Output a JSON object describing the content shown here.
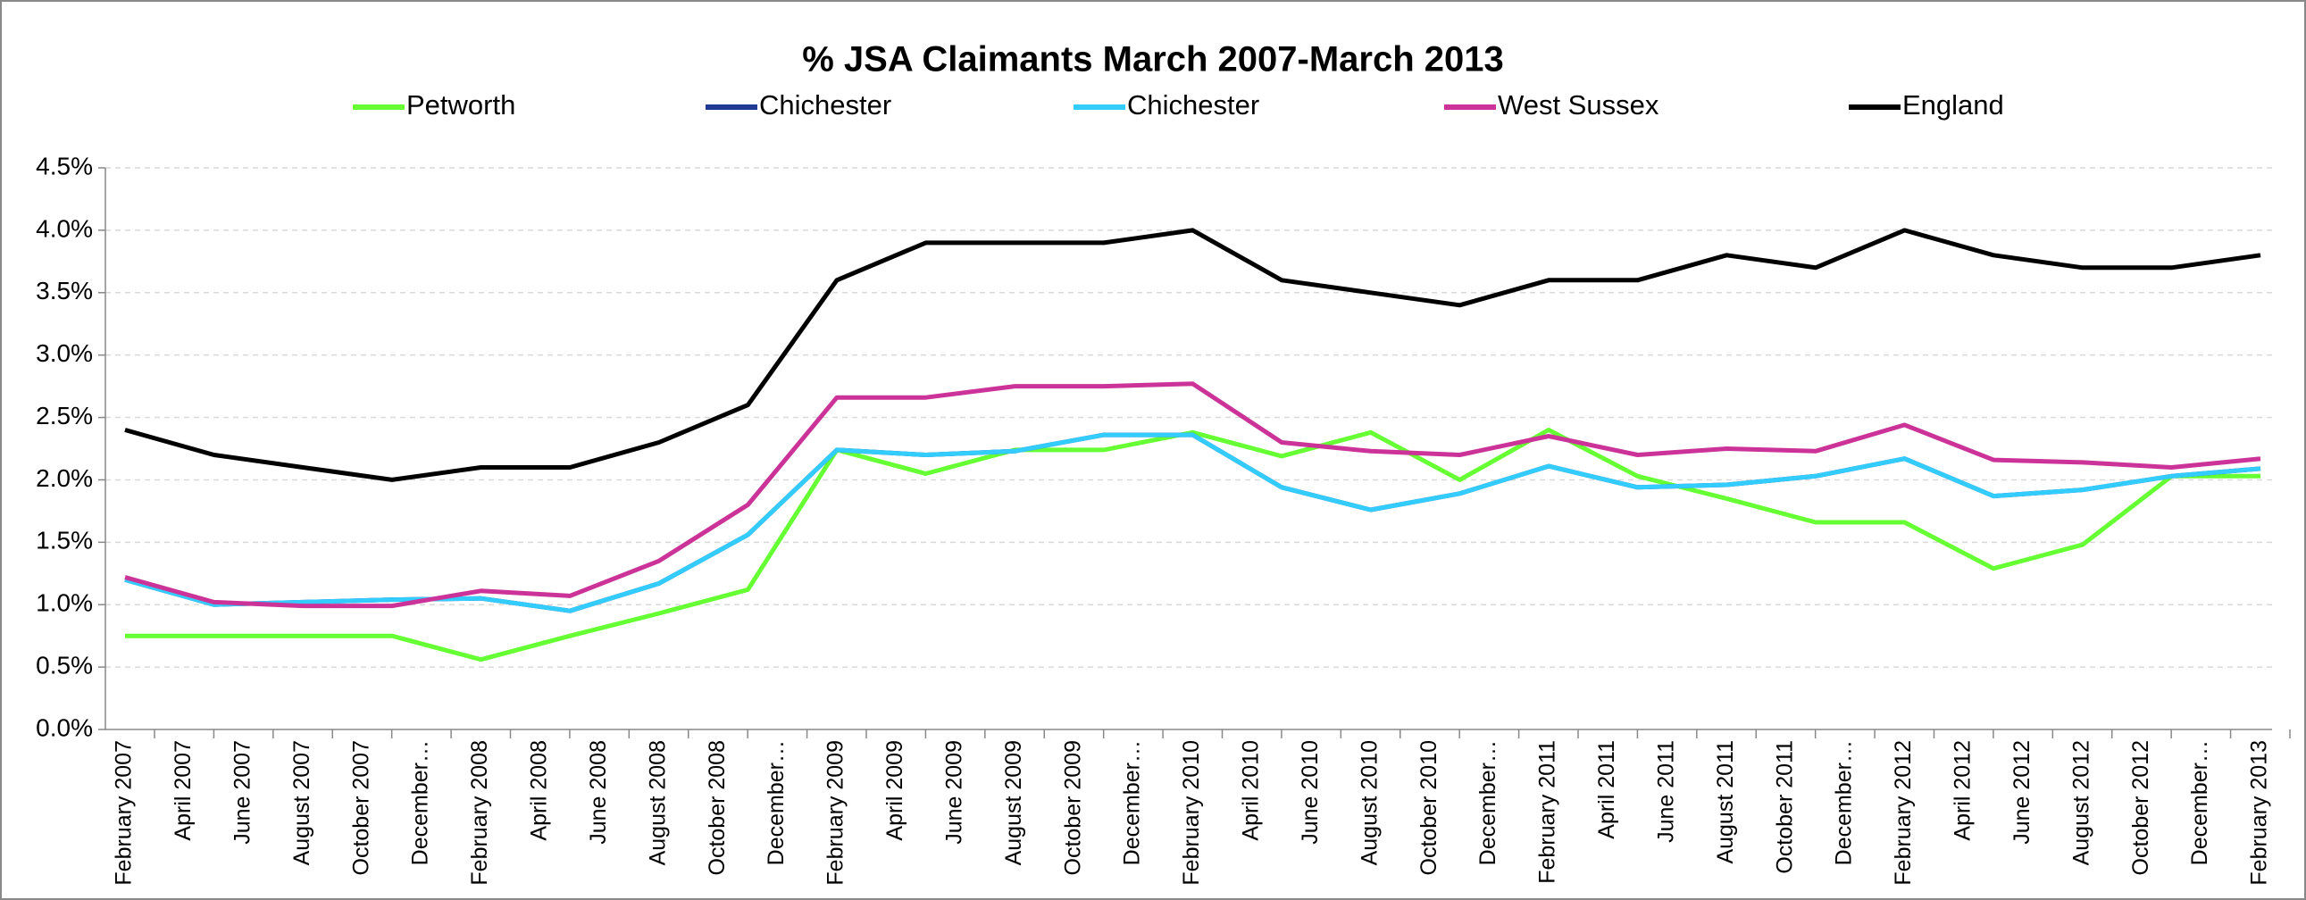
{
  "chart_data": {
    "type": "line",
    "title": "% JSA Claimants March 2007-March 2013",
    "x": [
      "2007-02",
      "2007-05",
      "2007-08",
      "2007-11",
      "2008-02",
      "2008-05",
      "2008-08",
      "2008-11",
      "2009-02",
      "2009-05",
      "2009-08",
      "2009-11",
      "2010-02",
      "2010-05",
      "2010-08",
      "2010-11",
      "2011-02",
      "2011-05",
      "2011-08",
      "2011-11",
      "2012-02",
      "2012-05",
      "2012-08",
      "2012-11",
      "2013-02"
    ],
    "series": [
      {
        "name": "Petworth",
        "color": "#66ff33",
        "values": [
          0.75,
          0.75,
          0.75,
          0.75,
          0.56,
          0.75,
          0.93,
          1.12,
          2.24,
          2.05,
          2.24,
          2.24,
          2.38,
          2.19,
          2.38,
          2.0,
          2.4,
          2.03,
          1.85,
          1.66,
          1.66,
          1.29,
          1.48,
          2.03,
          2.03
        ]
      },
      {
        "name": "Chichester",
        "color": "#1f3a93",
        "values": [
          1.2,
          1.0,
          1.02,
          1.04,
          1.05,
          0.95,
          1.17,
          1.56,
          2.24,
          2.2,
          2.23,
          2.36,
          2.36,
          1.94,
          1.76,
          1.89,
          2.11,
          1.94,
          1.96,
          2.03,
          2.17,
          1.87,
          1.92,
          2.03,
          2.09
        ]
      },
      {
        "name": "Chichester",
        "color": "#33ccff",
        "values": [
          1.2,
          1.0,
          1.02,
          1.04,
          1.05,
          0.95,
          1.17,
          1.56,
          2.24,
          2.2,
          2.23,
          2.36,
          2.36,
          1.94,
          1.76,
          1.89,
          2.11,
          1.94,
          1.96,
          2.03,
          2.17,
          1.87,
          1.92,
          2.03,
          2.09
        ]
      },
      {
        "name": "West Sussex",
        "color": "#cc3399",
        "values": [
          1.22,
          1.02,
          0.99,
          0.99,
          1.11,
          1.07,
          1.35,
          1.8,
          2.66,
          2.66,
          2.75,
          2.75,
          2.77,
          2.3,
          2.23,
          2.2,
          2.35,
          2.2,
          2.25,
          2.23,
          2.44,
          2.16,
          2.14,
          2.1,
          2.17
        ]
      },
      {
        "name": "England",
        "color": "#000000",
        "values": [
          2.4,
          2.2,
          2.1,
          2.0,
          2.1,
          2.1,
          2.3,
          2.6,
          3.6,
          3.9,
          3.9,
          3.9,
          4.0,
          3.6,
          3.5,
          3.4,
          3.6,
          3.6,
          3.8,
          3.7,
          4.0,
          3.8,
          3.7,
          3.7,
          3.8
        ]
      }
    ],
    "xticks": [
      {
        "value": "2007-02",
        "label": "February 2007"
      },
      {
        "value": "2007-04",
        "label": "April 2007"
      },
      {
        "value": "2007-06",
        "label": "June 2007"
      },
      {
        "value": "2007-08",
        "label": "August 2007"
      },
      {
        "value": "2007-10",
        "label": "October 2007"
      },
      {
        "value": "2007-12",
        "label": "December…"
      },
      {
        "value": "2008-02",
        "label": "February 2008"
      },
      {
        "value": "2008-04",
        "label": "April 2008"
      },
      {
        "value": "2008-06",
        "label": "June 2008"
      },
      {
        "value": "2008-08",
        "label": "August 2008"
      },
      {
        "value": "2008-10",
        "label": "October 2008"
      },
      {
        "value": "2008-12",
        "label": "December…"
      },
      {
        "value": "2009-02",
        "label": "February 2009"
      },
      {
        "value": "2009-04",
        "label": "April 2009"
      },
      {
        "value": "2009-06",
        "label": "June 2009"
      },
      {
        "value": "2009-08",
        "label": "August 2009"
      },
      {
        "value": "2009-10",
        "label": "October 2009"
      },
      {
        "value": "2009-12",
        "label": "December…"
      },
      {
        "value": "2010-02",
        "label": "February 2010"
      },
      {
        "value": "2010-04",
        "label": "April 2010"
      },
      {
        "value": "2010-06",
        "label": "June 2010"
      },
      {
        "value": "2010-08",
        "label": "August 2010"
      },
      {
        "value": "2010-10",
        "label": "October 2010"
      },
      {
        "value": "2010-12",
        "label": "December…"
      },
      {
        "value": "2011-02",
        "label": "February 2011"
      },
      {
        "value": "2011-04",
        "label": "April 2011"
      },
      {
        "value": "2011-06",
        "label": "June 2011"
      },
      {
        "value": "2011-08",
        "label": "August 2011"
      },
      {
        "value": "2011-10",
        "label": "October 2011"
      },
      {
        "value": "2011-12",
        "label": "December…"
      },
      {
        "value": "2012-02",
        "label": "February 2012"
      },
      {
        "value": "2012-04",
        "label": "April 2012"
      },
      {
        "value": "2012-06",
        "label": "June 2012"
      },
      {
        "value": "2012-08",
        "label": "August 2012"
      },
      {
        "value": "2012-10",
        "label": "October 2012"
      },
      {
        "value": "2012-12",
        "label": "December…"
      },
      {
        "value": "2013-02",
        "label": "February 2013"
      }
    ],
    "ylim": [
      0,
      4.5
    ],
    "yticks": [
      {
        "value": 0,
        "label": "0.0%"
      },
      {
        "value": 0.5,
        "label": "0.5%"
      },
      {
        "value": 1,
        "label": "1.0%"
      },
      {
        "value": 1.5,
        "label": "1.5%"
      },
      {
        "value": 2,
        "label": "2.0%"
      },
      {
        "value": 2.5,
        "label": "2.5%"
      },
      {
        "value": 3,
        "label": "3.0%"
      },
      {
        "value": 3.5,
        "label": "3.5%"
      },
      {
        "value": 4,
        "label": "4.0%"
      },
      {
        "value": 4.5,
        "label": "4.5%"
      }
    ],
    "grid": true,
    "legend": "top"
  }
}
